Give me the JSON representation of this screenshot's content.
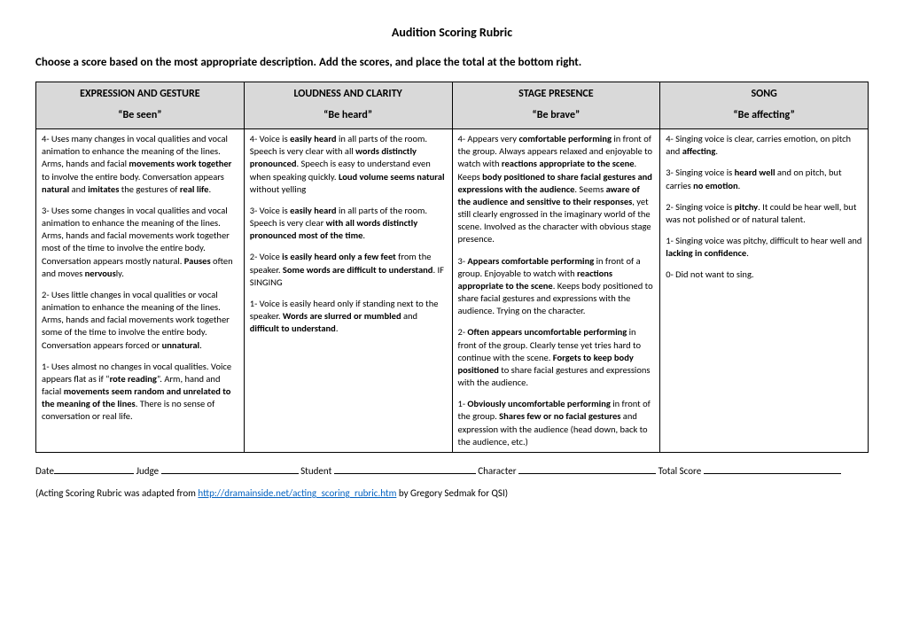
{
  "title": "Audition Scoring Rubric",
  "instruction": "Choose a score based on the most appropriate description. Add the scores, and place the total at the bottom right.",
  "columns": [
    {
      "header": "EXPRESSION AND GESTURE",
      "subheader": "“Be seen”"
    },
    {
      "header": "LOUDNESS AND CLARITY",
      "subheader": "“Be heard”"
    },
    {
      "header": "STAGE PRESENCE",
      "subheader": "“Be brave”"
    },
    {
      "header": "SONG",
      "subheader": "“Be affecting”"
    }
  ],
  "cells": {
    "c0": [
      "4- Uses many changes in vocal qualities and vocal animation to enhance the meaning of the lines.  Arms, hands and facial <b>movements work together</b> to involve the entire body. Conversation appears <b>natural</b> and <b>imitates</b> the gestures of <b>real life</b>.",
      "3- Uses some changes in vocal qualities and vocal animation to enhance the meaning of the lines.  Arms, hands and facial movements work together most of the time to involve the entire body.  Conversation appears mostly natural. <b>Pauses</b> often and moves <b>nervous</b>ly.",
      "2- Uses little changes in vocal qualities or vocal animation to enhance the meaning of the lines. Arms, hands and facial movements work together some of the time to involve the entire body.  Conversation appears forced or <b>unnatural</b>.",
      "1- Uses almost no changes in vocal qualities. Voice appears flat as if “<b>rote reading</b>”.  Arm, hand and facial <b>movements seem random and unrelated to the meaning of the lines</b>.  There is no sense of conversation or real life."
    ],
    "c1": [
      "4- Voice is <b>easily heard</b> in all parts of the room.  Speech is very clear with all <b>words distinctly pronounced</b>.  Speech is easy to understand even when speaking quickly. <b>Loud volume seems natural</b> without yelling",
      "3- Voice is <b>easily heard</b> in all parts of the room.  Speech is very clear <b>with all words distinctly pronounced most of the time</b>.",
      "2- Voice <b>is easily heard only a few feet</b> from the speaker.  <b>Some words are difficult to understand</b>. IF SINGING",
      "1- Voice is easily heard only if standing next to the speaker.  <b>Words are slurred or mumbled</b> and <b>difficult to understand</b>."
    ],
    "c2": [
      "4- Appears very <b>comfortable performing</b> in front of the group. Always appears relaxed and enjoyable to watch with <b>reactions appropriate to the scene</b>.  Keeps <b>body positioned to share facial gestures and expressions with the audience</b>.  Seems <b>aware of the audience and sensitive to their responses</b>, yet still clearly engrossed in the imaginary world of the scene. Involved as the character with obvious stage presence.",
      "3- <b>Appears comfortable performing</b> in front of a group. Enjoyable to watch with <b>reactions appropriate to the scene</b>.  Keeps body positioned to share facial gestures and expressions with the audience. Trying on the character.",
      "2- <b>Often appears uncomfortable performing</b> in front of the group.  Clearly tense yet tries hard to continue with the scene.  <b>Forgets to keep body positioned</b> to share facial gestures and expressions with the audience.",
      "1- <b>Obviously uncomfortable performing</b> in front of the group.  <b>Shares few or no facial gestures</b> and expression with the audience (head down, back to the audience, etc.)"
    ],
    "c3": [
      "4- Singing voice is clear, carries emotion, on pitch and <b>affecting</b>.",
      "3- Singing voice is <b>heard well</b> and on pitch, but carries <b>no emotion</b>.",
      "2- Singing voice is <b>pitchy</b>. It could be hear well, but was not polished or of natural talent.",
      "1- Singing voice was pitchy, difficult to hear well and <b>lacking in confidence</b>.",
      "0- Did not want to sing."
    ]
  },
  "footer": {
    "date": "Date",
    "judge": "Judge",
    "student": "Student",
    "character": "Character",
    "total": "Total Score"
  },
  "credit": {
    "prefix": "(Acting Scoring Rubric was adapted from ",
    "url": "http://dramainside.net/acting_scoring_rubric.htm",
    "suffix": " by Gregory Sedmak for QSI)"
  }
}
